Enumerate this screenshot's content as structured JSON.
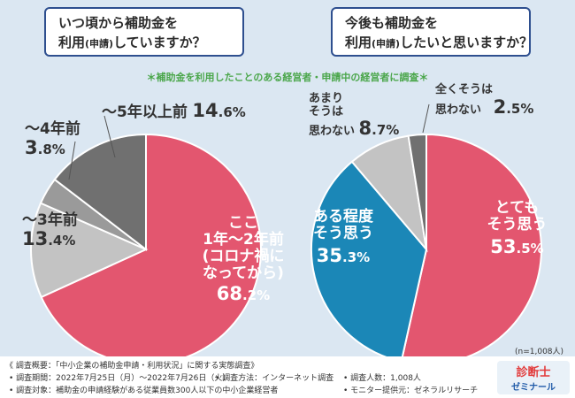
{
  "questions": {
    "left": {
      "line1": "いつ頃から補助金を",
      "line2_a": "利用",
      "line2_b": "(申請)",
      "line2_c": "していますか？"
    },
    "right": {
      "line1": "今後も補助金を",
      "line2_a": "利用",
      "line2_b": "(申請)",
      "line2_c": "したいと思いますか？"
    }
  },
  "survey_note": "＊補助金を利用したことのある経営者・申請中の経営者に調査＊",
  "n_note": "(n=1,008人)",
  "colors": {
    "pink": "#e3566f",
    "blue": "#1b87b7",
    "light_gray": "#c3c3c3",
    "mid_gray": "#9a9a9a",
    "dark_gray": "#707070",
    "bg": "#dbe7f2"
  },
  "chart_data": [
    {
      "type": "pie",
      "title": "いつ頃から補助金を利用(申請)していますか？",
      "slices": [
        {
          "label": "ここ1年〜2年前(コロナ禍になってから)",
          "value": 68.2,
          "color": "#e3566f"
        },
        {
          "label": "〜3年前",
          "value": 13.4,
          "color": "#c3c3c3"
        },
        {
          "label": "〜4年前",
          "value": 3.8,
          "color": "#9a9a9a"
        },
        {
          "label": "〜5年以上前",
          "value": 14.6,
          "color": "#707070"
        }
      ]
    },
    {
      "type": "pie",
      "title": "今後も補助金を利用(申請)したいと思いますか？",
      "slices": [
        {
          "label": "とてもそう思う",
          "value": 53.5,
          "color": "#e3566f"
        },
        {
          "label": "ある程度そう思う",
          "value": 35.3,
          "color": "#1b87b7"
        },
        {
          "label": "あまりそうは思わない",
          "value": 8.7,
          "color": "#c3c3c3"
        },
        {
          "label": "全くそうは思わない",
          "value": 2.5,
          "color": "#707070"
        }
      ]
    }
  ],
  "labels": {
    "left": {
      "s1_l1": "ここ",
      "s1_l2": "1年〜2年前",
      "s1_l3": "(コロナ禍に",
      "s1_l4": "なってから)",
      "s1_pct_int": "68",
      "s1_pct_dec": ".2%",
      "s2_l1": "〜3年前",
      "s2_pct_int": "13",
      "s2_pct_dec": ".4%",
      "s3_l1": "〜4年前",
      "s3_pct_int": "3",
      "s3_pct_dec": ".8%",
      "s4_l1": "〜5年以上前",
      "s4_pct_int": "14",
      "s4_pct_dec": ".6%"
    },
    "right": {
      "s1_l1": "とても",
      "s1_l2": "そう思う",
      "s1_pct_int": "53",
      "s1_pct_dec": ".5%",
      "s2_l1": "ある程度",
      "s2_l2": "そう思う",
      "s2_pct_int": "35",
      "s2_pct_dec": ".3%",
      "s3_l1": "あまり",
      "s3_l2": "そうは",
      "s3_l3": "思わない",
      "s3_pct_int": "8",
      "s3_pct_dec": ".7%",
      "s4_l1": "全くそうは",
      "s4_l2": "思わない",
      "s4_pct_int": "2",
      "s4_pct_dec": ".5%"
    }
  },
  "footer": {
    "overview": "《 調査概要：「中小企業の補助金申請・利用状況」に関する実態調査》",
    "period": "• 調査期間：2022年7月25日（月）〜2022年7月26日（火）",
    "method": "• 調査方法：インターネット調査",
    "count": "• 調査人数：1,008人",
    "target": "• 調査対象：補助金の申請経験がある従業員数300人以下の中小企業経営者",
    "provider": "• モニター提供元：ゼネラルリサーチ",
    "logo_line1": "診断士",
    "logo_line2": "ゼミナール"
  }
}
